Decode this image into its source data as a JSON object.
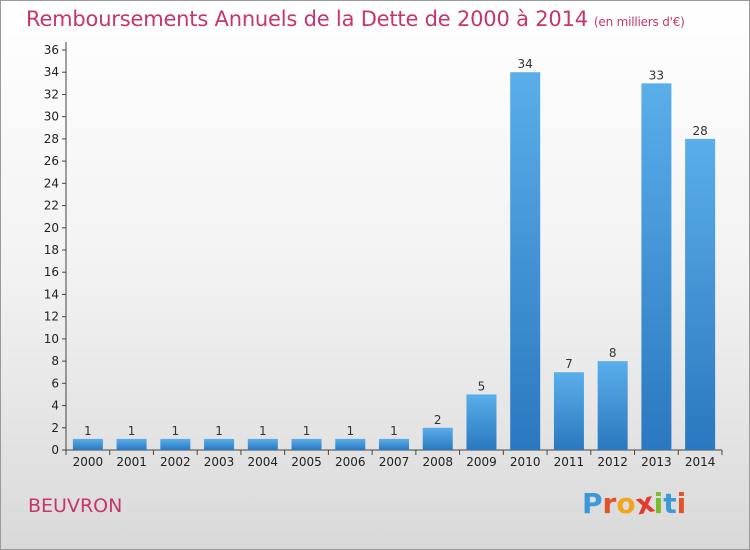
{
  "chart_data": {
    "type": "bar",
    "title": "Remboursements Annuels de la Dette de 2000 à 2014",
    "subtitle": "(en milliers d'€)",
    "xlabel": "",
    "ylabel": "",
    "categories": [
      "2000",
      "2001",
      "2002",
      "2003",
      "2004",
      "2005",
      "2006",
      "2007",
      "2008",
      "2009",
      "2010",
      "2011",
      "2012",
      "2013",
      "2014"
    ],
    "values": [
      1,
      1,
      1,
      1,
      1,
      1,
      1,
      1,
      2,
      5,
      34,
      7,
      8,
      33,
      28
    ],
    "ylim": [
      0,
      36
    ],
    "yticks": [
      0,
      2,
      4,
      6,
      8,
      10,
      12,
      14,
      16,
      18,
      20,
      22,
      24,
      26,
      28,
      30,
      32,
      34,
      36
    ],
    "grid": false,
    "bar_color": "#3a8fd6"
  },
  "footer": {
    "town": "BEUVRON",
    "logo_letters": [
      "P",
      "r",
      "o",
      "x",
      "i",
      "t",
      "i"
    ],
    "logo_colors": [
      "#3a9ad9",
      "#e2522b",
      "#f0a51c",
      "#e23b2c",
      "#7cbb2e",
      "#3a9ad9",
      "#e2522b"
    ]
  }
}
